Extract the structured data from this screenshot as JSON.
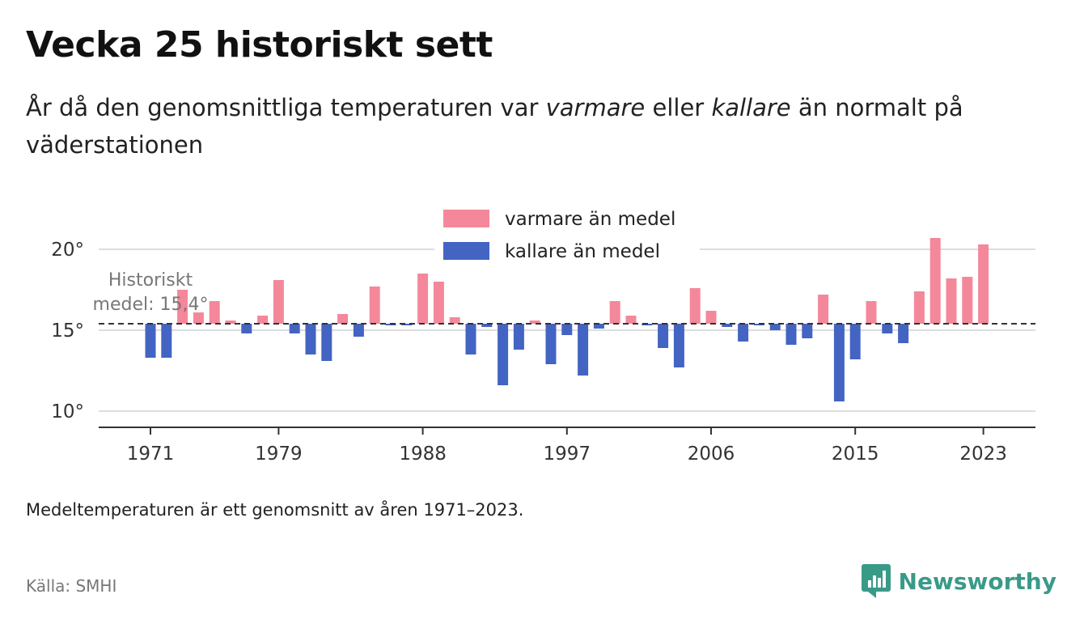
{
  "header": {
    "title": "Vecka 25 historiskt sett",
    "subtitle_part1": "År då den genomsnittliga temperaturen var ",
    "subtitle_em1": "varmare",
    "subtitle_part2": " eller ",
    "subtitle_em2": "kallare",
    "subtitle_part3": " än normalt på väderstationen"
  },
  "footer": {
    "note": "Medeltemperaturen är ett genomsnitt av åren 1971–2023.",
    "source": "Källa: SMHI",
    "brand": "Newsworthy"
  },
  "chart_data": {
    "type": "bar",
    "baseline": 15.4,
    "baseline_label_line1": "Historiskt",
    "baseline_label_line2": "medel: 15,4°",
    "ylim": [
      9,
      21.5
    ],
    "yticks": [
      10,
      15,
      20
    ],
    "ytick_labels": [
      "10°",
      "15°",
      "20°"
    ],
    "xticks": [
      1971,
      1979,
      1988,
      1997,
      2006,
      2015,
      2023
    ],
    "xtick_labels": [
      "1971",
      "1979",
      "1988",
      "1997",
      "2006",
      "2015",
      "2023"
    ],
    "legend": {
      "position": "top-center",
      "warm_label": "varmare än medel",
      "cold_label": "kallare än medel"
    },
    "colors": {
      "warm": "#f4889a",
      "cold": "#4364c2",
      "grid": "#dddddd",
      "axis": "#333333"
    },
    "years": [
      1971,
      1972,
      1973,
      1974,
      1975,
      1976,
      1977,
      1978,
      1979,
      1980,
      1981,
      1982,
      1983,
      1984,
      1985,
      1986,
      1987,
      1988,
      1989,
      1990,
      1991,
      1992,
      1993,
      1994,
      1995,
      1996,
      1997,
      1998,
      1999,
      2000,
      2001,
      2002,
      2003,
      2004,
      2005,
      2006,
      2007,
      2008,
      2009,
      2010,
      2011,
      2012,
      2013,
      2014,
      2015,
      2016,
      2017,
      2018,
      2019,
      2020,
      2021,
      2022,
      2023
    ],
    "values": [
      13.3,
      13.3,
      17.5,
      16.1,
      16.8,
      15.6,
      14.8,
      15.9,
      18.1,
      14.8,
      13.5,
      13.1,
      16.0,
      14.6,
      17.7,
      15.3,
      15.3,
      18.5,
      18.0,
      15.8,
      13.5,
      15.2,
      11.6,
      13.8,
      15.6,
      12.9,
      14.7,
      12.2,
      15.1,
      16.8,
      15.9,
      15.3,
      13.9,
      12.7,
      17.6,
      16.2,
      15.2,
      14.3,
      15.3,
      15.0,
      14.1,
      14.5,
      17.2,
      10.6,
      13.2,
      16.8,
      14.8,
      14.2,
      17.4,
      20.7,
      18.2,
      18.3,
      20.3
    ]
  }
}
